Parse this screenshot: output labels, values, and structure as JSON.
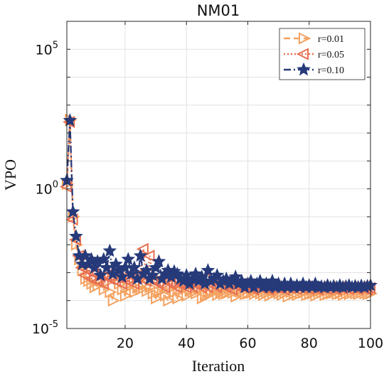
{
  "chart_data": {
    "type": "line",
    "title": "NM01",
    "xlabel": "Iteration",
    "ylabel": "VPO",
    "xlim": [
      1,
      100
    ],
    "ylim": [
      1e-05,
      1000000
    ],
    "yscale": "log",
    "grid": true,
    "xticks": [
      20,
      40,
      60,
      80,
      100
    ],
    "yticks": [
      {
        "value": 1e-05,
        "base": "10",
        "exp": "-5"
      },
      {
        "value": 1,
        "base": "10",
        "exp": "0"
      },
      {
        "value": 100000,
        "base": "10",
        "exp": "5"
      }
    ],
    "legend_position": "top-right",
    "series": [
      {
        "name": "r=0.01",
        "color": "#F4A261",
        "marker": "triangle-right",
        "line_style": "dashed",
        "x": [
          1,
          2,
          3,
          4,
          5,
          6,
          7,
          8,
          9,
          10,
          11,
          12,
          13,
          14,
          15,
          16,
          17,
          18,
          19,
          20,
          21,
          22,
          23,
          24,
          25,
          26,
          27,
          28,
          29,
          30,
          31,
          32,
          33,
          34,
          35,
          36,
          37,
          38,
          39,
          40,
          41,
          42,
          43,
          44,
          45,
          46,
          47,
          48,
          49,
          50,
          51,
          52,
          53,
          54,
          55,
          56,
          57,
          58,
          59,
          60,
          61,
          62,
          63,
          64,
          65,
          66,
          67,
          68,
          69,
          70,
          71,
          72,
          73,
          74,
          75,
          76,
          77,
          78,
          79,
          80,
          81,
          82,
          83,
          84,
          85,
          86,
          87,
          88,
          89,
          90,
          91,
          92,
          93,
          94,
          95,
          96,
          97,
          98,
          99,
          100
        ],
        "y": [
          1.5,
          300,
          0.1,
          0.01,
          0.003,
          0.0012,
          0.0006,
          0.0005,
          0.0004,
          0.0003,
          0.00035,
          0.0006,
          0.00025,
          0.00045,
          0.0002,
          0.0001,
          0.0007,
          0.0004,
          0.00025,
          0.00015,
          0.0003,
          0.00035,
          0.0002,
          0.00028,
          0.00025,
          0.0004,
          0.00022,
          0.0003,
          0.00018,
          0.00012,
          0.0002,
          0.00025,
          0.00015,
          0.0001,
          0.00028,
          0.0002,
          0.00012,
          0.00022,
          0.0003,
          0.00015,
          0.00022,
          0.0002,
          0.00018,
          0.00025,
          0.00012,
          0.00015,
          0.0002,
          0.00018,
          0.00022,
          0.00016,
          0.0002,
          0.00017,
          0.00018,
          0.00021,
          0.00019,
          0.00014,
          0.00022,
          0.0002,
          0.00017,
          0.00018,
          0.00019,
          0.00017,
          0.0002,
          0.00018,
          0.00016,
          0.00019,
          0.00015,
          0.00017,
          0.00021,
          0.00018,
          0.00016,
          0.00019,
          0.00014,
          0.0002,
          0.00017,
          0.00016,
          0.00018,
          0.00019,
          0.00016,
          0.00017,
          0.00018,
          0.00015,
          0.00017,
          0.00019,
          0.00016,
          0.00017,
          0.00018,
          0.00019,
          0.00017,
          0.00018,
          0.00016,
          0.00018,
          0.00017,
          0.00019,
          0.00018,
          0.00017,
          0.00019,
          0.00018,
          0.00017,
          0.00018
        ]
      },
      {
        "name": "r=0.05",
        "color": "#E76F51",
        "marker": "triangle-left",
        "line_style": "dotted",
        "x": [
          1,
          2,
          3,
          4,
          5,
          6,
          7,
          8,
          9,
          10,
          11,
          12,
          13,
          14,
          15,
          16,
          17,
          18,
          19,
          20,
          21,
          22,
          23,
          24,
          25,
          26,
          27,
          28,
          29,
          30,
          31,
          32,
          33,
          34,
          35,
          36,
          37,
          38,
          39,
          40,
          41,
          42,
          43,
          44,
          45,
          46,
          47,
          48,
          49,
          50,
          51,
          52,
          53,
          54,
          55,
          56,
          57,
          58,
          59,
          60,
          61,
          62,
          63,
          64,
          65,
          66,
          67,
          68,
          69,
          70,
          71,
          72,
          73,
          74,
          75,
          76,
          77,
          78,
          79,
          80,
          81,
          82,
          83,
          84,
          85,
          86,
          87,
          88,
          89,
          90,
          91,
          92,
          93,
          94,
          95,
          96,
          97,
          98,
          99,
          100
        ],
        "y": [
          1.2,
          250,
          0.08,
          0.015,
          0.004,
          0.0015,
          0.0008,
          0.0012,
          0.0006,
          0.0009,
          0.0005,
          0.0007,
          0.0004,
          0.0008,
          0.0006,
          0.0009,
          0.0005,
          0.001,
          0.0004,
          0.0007,
          0.0005,
          0.0008,
          0.0004,
          0.0006,
          0.0009,
          0.007,
          0.0005,
          0.004,
          0.0006,
          0.0005,
          0.0004,
          0.0006,
          0.0003,
          0.0005,
          0.0004,
          0.0006,
          0.0003,
          0.0004,
          0.0005,
          0.0003,
          0.0004,
          0.0003,
          0.0004,
          0.0005,
          0.0003,
          0.0006,
          0.0003,
          0.0004,
          0.00035,
          0.0003,
          0.0004,
          0.00035,
          0.0003,
          0.0004,
          0.00025,
          0.00035,
          0.0003,
          0.0004,
          0.00028,
          0.00035,
          0.0003,
          0.00025,
          0.00035,
          0.0003,
          0.00028,
          0.00032,
          0.00025,
          0.0003,
          0.00035,
          0.00028,
          0.0003,
          0.00025,
          0.00032,
          0.00028,
          0.0003,
          0.00026,
          0.0003,
          0.00028,
          0.00032,
          0.00026,
          0.0003,
          0.00028,
          0.00025,
          0.0003,
          0.00028,
          0.00026,
          0.0003,
          0.00028,
          0.00025,
          0.0003,
          0.00027,
          0.00029,
          0.00026,
          0.0003,
          0.00028,
          0.00026,
          0.0003,
          0.00027,
          0.00025,
          0.00028
        ]
      },
      {
        "name": "r=0.10",
        "color": "#263A7A",
        "marker": "star",
        "line_style": "dashdot",
        "x": [
          1,
          2,
          3,
          4,
          5,
          6,
          7,
          8,
          9,
          10,
          11,
          12,
          13,
          14,
          15,
          16,
          17,
          18,
          19,
          20,
          21,
          22,
          23,
          24,
          25,
          26,
          27,
          28,
          29,
          30,
          31,
          32,
          33,
          34,
          35,
          36,
          37,
          38,
          39,
          40,
          41,
          42,
          43,
          44,
          45,
          46,
          47,
          48,
          49,
          50,
          51,
          52,
          53,
          54,
          55,
          56,
          57,
          58,
          59,
          60,
          61,
          62,
          63,
          64,
          65,
          66,
          67,
          68,
          69,
          70,
          71,
          72,
          73,
          74,
          75,
          76,
          77,
          78,
          79,
          80,
          81,
          82,
          83,
          84,
          85,
          86,
          87,
          88,
          89,
          90,
          91,
          92,
          93,
          94,
          95,
          96,
          97,
          98,
          99,
          100
        ],
        "y": [
          2,
          280,
          0.15,
          0.02,
          0.004,
          0.002,
          0.004,
          0.002,
          0.003,
          0.0015,
          0.0025,
          0.0008,
          0.003,
          0.0015,
          0.006,
          0.0009,
          0.002,
          0.0012,
          0.0007,
          0.0015,
          0.003,
          0.0009,
          0.0015,
          0.0006,
          0.004,
          0.0009,
          0.0012,
          0.0006,
          0.0008,
          0.0015,
          0.0025,
          0.0006,
          0.0009,
          0.0012,
          0.0007,
          0.0011,
          0.0009,
          0.0006,
          0.0005,
          0.0008,
          0.0004,
          0.0006,
          0.0009,
          0.0005,
          0.0007,
          0.0004,
          0.0012,
          0.0005,
          0.0006,
          0.0008,
          0.0004,
          0.0005,
          0.0006,
          0.0004,
          0.0005,
          0.0007,
          0.0004,
          0.0005,
          0.0003,
          0.0004,
          0.0005,
          0.0003,
          0.0004,
          0.0005,
          0.0003,
          0.0004,
          0.0003,
          0.0005,
          0.0003,
          0.0004,
          0.0003,
          0.0004,
          0.0003,
          0.0004,
          0.0003,
          0.00035,
          0.0003,
          0.0004,
          0.0003,
          0.00035,
          0.0003,
          0.0004,
          0.0003,
          0.00032,
          0.0003,
          0.00035,
          0.0003,
          0.00033,
          0.0003,
          0.00035,
          0.0003,
          0.00032,
          0.00035,
          0.0003,
          0.00033,
          0.0003,
          0.00034,
          0.0003,
          0.00033,
          0.00035
        ]
      }
    ]
  }
}
